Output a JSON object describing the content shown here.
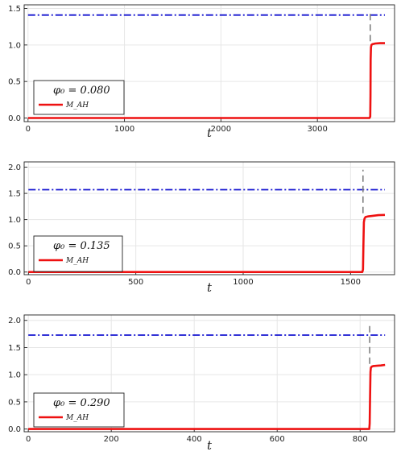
{
  "chart_data": [
    {
      "type": "line",
      "xlabel": "t",
      "xlim": [
        -40,
        3800
      ],
      "ylim": [
        -0.05,
        1.55
      ],
      "xticks": [
        0,
        1000,
        2000,
        3000
      ],
      "yticks": [
        0.0,
        0.5,
        1.0,
        1.5
      ],
      "grid": true,
      "legend": {
        "title": "φ₀ = 0.080",
        "position": "bottom-left",
        "entries": [
          {
            "label": "M_AH",
            "color": "#ee1111"
          }
        ]
      },
      "series": [
        {
          "name": "M_AH",
          "color": "#ee1111",
          "style": "solid",
          "x": [
            0,
            3540,
            3548,
            3550,
            3552,
            3555,
            3560,
            3570,
            3600,
            3650,
            3700
          ],
          "y": [
            0,
            0,
            0.02,
            0.3,
            0.8,
            0.97,
            1.0,
            1.01,
            1.02,
            1.025,
            1.025
          ]
        },
        {
          "color": "#1515d0",
          "style": "dashdot",
          "x": [
            0,
            3700
          ],
          "y": [
            1.41,
            1.41
          ]
        },
        {
          "color": "#808080",
          "style": "dashed",
          "x": [
            3548,
            3548
          ],
          "y": [
            1.05,
            1.47
          ]
        }
      ]
    },
    {
      "type": "line",
      "xlabel": "t",
      "xlim": [
        -20,
        1705
      ],
      "ylim": [
        -0.05,
        2.1
      ],
      "xticks": [
        0,
        500,
        1000,
        1500
      ],
      "yticks": [
        0.0,
        0.5,
        1.0,
        1.5,
        2.0
      ],
      "grid": true,
      "legend": {
        "title": "φ₀ = 0.135",
        "position": "bottom-left",
        "entries": [
          {
            "label": "M_AH",
            "color": "#ee1111"
          }
        ]
      },
      "series": [
        {
          "name": "M_AH",
          "color": "#ee1111",
          "style": "solid",
          "x": [
            0,
            1555,
            1558,
            1560,
            1562,
            1565,
            1570,
            1580,
            1600,
            1630,
            1660
          ],
          "y": [
            0,
            0,
            0.05,
            0.5,
            0.95,
            1.02,
            1.05,
            1.06,
            1.07,
            1.085,
            1.09
          ]
        },
        {
          "color": "#1515d0",
          "style": "dashdot",
          "x": [
            0,
            1660
          ],
          "y": [
            1.57,
            1.57
          ]
        },
        {
          "color": "#808080",
          "style": "dashed",
          "x": [
            1558,
            1558
          ],
          "y": [
            1.12,
            1.95
          ]
        }
      ]
    },
    {
      "type": "line",
      "xlabel": "t",
      "xlim": [
        -10,
        883
      ],
      "ylim": [
        -0.05,
        2.1
      ],
      "xticks": [
        0,
        200,
        400,
        600,
        800
      ],
      "yticks": [
        0.0,
        0.5,
        1.0,
        1.5,
        2.0
      ],
      "grid": true,
      "legend": {
        "title": "φ₀ = 0.290",
        "position": "bottom-left",
        "entries": [
          {
            "label": "M_AH",
            "color": "#ee1111"
          }
        ]
      },
      "series": [
        {
          "name": "M_AH",
          "color": "#ee1111",
          "style": "solid",
          "x": [
            0,
            822,
            823,
            824,
            825,
            826,
            828,
            832,
            840,
            850,
            860
          ],
          "y": [
            0,
            0,
            0.1,
            0.6,
            1.05,
            1.13,
            1.15,
            1.16,
            1.165,
            1.17,
            1.18
          ]
        },
        {
          "color": "#1515d0",
          "style": "dashdot",
          "x": [
            0,
            860
          ],
          "y": [
            1.73,
            1.73
          ]
        },
        {
          "color": "#808080",
          "style": "dashed",
          "x": [
            823,
            823
          ],
          "y": [
            1.2,
            1.92
          ]
        }
      ]
    }
  ]
}
